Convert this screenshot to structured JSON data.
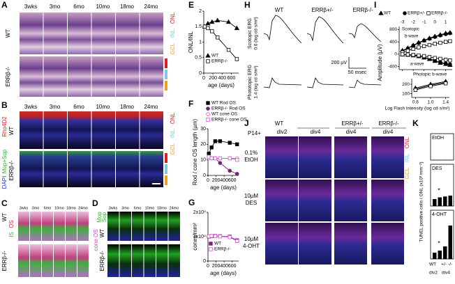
{
  "panel_a": {
    "label": "A",
    "columns": [
      "3wks",
      "3mo",
      "6mo",
      "10mo",
      "18mo",
      "24mo"
    ],
    "rows": [
      "WT",
      "ERRβ-/-"
    ],
    "layers": [
      "ONL",
      "INL",
      "GCL"
    ]
  },
  "panel_b": {
    "label": "B",
    "columns": [
      "3wks",
      "3mo",
      "6mo",
      "10mo",
      "18mo",
      "24mo"
    ],
    "rows": [
      "WT",
      "ERRβ-/-"
    ],
    "stains": [
      "Rho4D2",
      "Mop+Sop",
      "DAPI"
    ],
    "layers": [
      "ONL",
      "INL",
      "GCL"
    ]
  },
  "panel_c": {
    "label": "C",
    "columns": [
      "3wks",
      "3mo",
      "6mo",
      "10mo",
      "18mo",
      "24mo"
    ],
    "rows": [
      "WT",
      "ERRβ-/-"
    ],
    "layers": [
      "OS",
      "IS"
    ]
  },
  "panel_d": {
    "label": "D",
    "columns": [
      "3wks",
      "3mo",
      "6mo",
      "10mo",
      "18mo",
      "24mo"
    ],
    "rows": [
      "WT",
      "ERRβ-/-"
    ],
    "stains": [
      "Mop",
      "Sop",
      "cone OS"
    ]
  },
  "panel_e": {
    "label": "E",
    "type": "line",
    "y_label": "ONL/INL",
    "x_label": "age (days)",
    "x": [
      21,
      90,
      180,
      300,
      540,
      720
    ],
    "xlim": [
      0,
      760
    ],
    "xticks": [
      0,
      200,
      400,
      600
    ],
    "ylim": [
      0,
      2
    ],
    "yticks": [
      0,
      0.5,
      1,
      1.5,
      2
    ],
    "series": [
      {
        "name": "WT",
        "color": "#000000",
        "marker": "triangle",
        "filled": true,
        "values": [
          1.5,
          1.6,
          1.65,
          1.7,
          1.65,
          1.45
        ]
      },
      {
        "name": "ERRβ-/-",
        "color": "#000000",
        "marker": "square",
        "filled": false,
        "values": [
          1.5,
          1.45,
          1.35,
          1.15,
          0.75,
          0.45
        ]
      }
    ]
  },
  "panel_f": {
    "label": "F",
    "type": "line",
    "y_label": "Rod / cone OS length (µm)",
    "x_label": "age (days)",
    "x": [
      21,
      90,
      180,
      300,
      540,
      720
    ],
    "xlim": [
      0,
      760
    ],
    "xticks": [
      0,
      200,
      400,
      600
    ],
    "ylim": [
      0,
      30
    ],
    "yticks": [
      0,
      10,
      20,
      30
    ],
    "series": [
      {
        "name": "WT Rod OS",
        "color": "#000000",
        "marker": "square",
        "filled": true,
        "values": [
          14,
          18,
          22,
          22,
          21,
          20
        ]
      },
      {
        "name": "ERRβ-/- Rod OS",
        "color": "#7a1f7a",
        "marker": "circle",
        "filled": true,
        "values": [
          12,
          11,
          11,
          8,
          3,
          1
        ]
      },
      {
        "name": "WT cone OS",
        "color": "#e040e0",
        "marker": "circle",
        "filled": false,
        "values": [
          11,
          11,
          11,
          11,
          11,
          11
        ]
      },
      {
        "name": "ERRβ-/- cone OS",
        "color": "#e040e0",
        "marker": "square",
        "filled": false,
        "values": [
          12,
          11,
          11,
          11,
          11,
          10
        ]
      }
    ]
  },
  "panel_g": {
    "label": "G",
    "type": "line",
    "y_label": "cones/mm²",
    "x_label": "age (days)",
    "x": [
      21,
      90,
      180,
      300,
      540,
      720
    ],
    "xlim": [
      0,
      760
    ],
    "xticks": [
      0,
      200,
      400,
      600
    ],
    "ylim": [
      0,
      20000
    ],
    "yticks": [
      0,
      {
        "value": 10000,
        "label": "1x10⁴"
      },
      {
        "value": 20000,
        "label": "2x10⁴"
      }
    ],
    "series": [
      {
        "name": "WT",
        "color": "#7a1f7a",
        "marker": "square",
        "filled": true,
        "values": [
          10000,
          10200,
          10300,
          10200,
          10000,
          8500
        ]
      },
      {
        "name": "ERRβ-/-",
        "color": "#e040e0",
        "marker": "square",
        "filled": false,
        "values": [
          10100,
          10300,
          10200,
          10100,
          9800,
          8200
        ]
      }
    ]
  },
  "panel_h": {
    "label": "H",
    "columns": [
      "WT",
      "ERRβ+/-",
      "ERRβ-/-"
    ],
    "scotopic": [
      "Scotopic ERG",
      "0.6 (log cd·s/m²)"
    ],
    "photopic": [
      "Phototopic ERG",
      "1.4 (log cd·s/m²)"
    ],
    "scale": [
      "200 µV",
      "50 msec"
    ]
  },
  "panel_i": {
    "label": "I",
    "type": "line",
    "y_label": "Amplitude (µV)",
    "x_label": "Log Flash Intensity (log cd·s/m²)",
    "annotations": [
      "Scotopic",
      "b-wave",
      "a-wave"
    ],
    "x": [
      -3,
      -2.5,
      -2,
      -1.5,
      -1,
      -0.5,
      0,
      0.5,
      1,
      1.4
    ],
    "xlim": [
      -3.3,
      1.6
    ],
    "xticks": [
      -3,
      -2,
      -1,
      0,
      1
    ],
    "ylim": [
      -500,
      900
    ],
    "yticks": [
      -400,
      0,
      400,
      800
    ],
    "series": [
      {
        "name": "WT",
        "color": "#000000",
        "marker": "triangle",
        "filled": true,
        "b_wave": [
          120,
          200,
          290,
          380,
          450,
          520,
          580,
          630,
          680,
          700
        ],
        "a_wave": [
          -10,
          -20,
          -40,
          -70,
          -110,
          -160,
          -220,
          -280,
          -320,
          -350
        ]
      },
      {
        "name": "ERRβ+/-",
        "color": "#000000",
        "marker": "circle",
        "filled": true,
        "b_wave": [
          100,
          190,
          280,
          360,
          440,
          500,
          560,
          610,
          650,
          680
        ],
        "a_wave": [
          -10,
          -20,
          -35,
          -65,
          -100,
          -150,
          -210,
          -260,
          -300,
          -330
        ]
      },
      {
        "name": "ERRβ-/-",
        "color": "#000000",
        "marker": "square",
        "filled": false,
        "b_wave": [
          60,
          110,
          170,
          220,
          260,
          300,
          340,
          370,
          400,
          420
        ],
        "a_wave": [
          -5,
          -10,
          -20,
          -40,
          -60,
          -90,
          -120,
          -150,
          -180,
          -200
        ]
      }
    ],
    "inset": {
      "title": "Photopic b-wave",
      "x": [
        0.6,
        1,
        1.4
      ],
      "xlim": [
        0.5,
        1.5
      ],
      "xticks": [
        0.6,
        {
          "value": 1,
          "label": "1.0"
        },
        1.4
      ],
      "ylim": [
        60,
        260
      ],
      "yticks": [
        100,
        200
      ],
      "series": [
        {
          "values": [
            160,
            200,
            230
          ]
        },
        {
          "values": [
            150,
            190,
            220
          ]
        },
        {
          "values": [
            140,
            180,
            210
          ]
        }
      ]
    }
  },
  "panel_j": {
    "label": "J",
    "stage": "P14+",
    "genotypes": [
      "WT",
      "ERRβ+/-",
      "ERRβ-/-"
    ],
    "columns": [
      "div2",
      "div4",
      "div4",
      "div4"
    ],
    "rows": [
      [
        "0.1%",
        "EtOH"
      ],
      [
        "10µM",
        "DES"
      ],
      [
        "10µM",
        "4-OHT"
      ]
    ],
    "layers": [
      "ONL",
      "INL",
      "GCL"
    ]
  },
  "panel_k": {
    "label": "K",
    "type": "bar",
    "y_label": "TUNEL positive cells / ONL (x10³ mm⁻²)",
    "x_labels": [
      "WT",
      "+/-",
      "-/-"
    ],
    "groups": [
      "div2",
      "div4"
    ],
    "ylim": [
      0,
      2
    ],
    "panels": [
      {
        "title": "EtOH",
        "values": [
          0.02,
          0.02,
          0.03,
          0.03
        ]
      },
      {
        "title": "DES",
        "values": [
          0.4,
          0.5,
          0.55,
          0.6
        ],
        "significance": "*"
      },
      {
        "title": "4-OHT",
        "values": [
          0.3,
          0.4,
          0.6,
          1.6
        ],
        "significance": "*"
      }
    ]
  }
}
